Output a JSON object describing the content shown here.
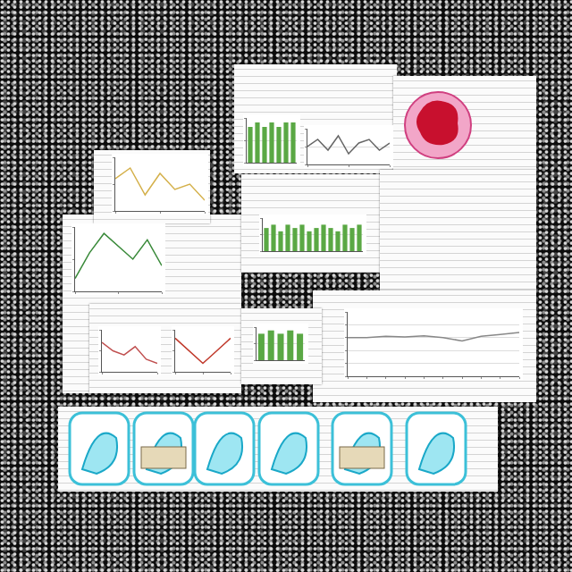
{
  "chart_data": [
    {
      "type": "line",
      "x": [
        0,
        1,
        2,
        3,
        4,
        5,
        6
      ],
      "values": [
        0.6,
        0.8,
        0.3,
        0.7,
        0.4,
        0.5,
        0.2
      ],
      "color": "#d4b04a",
      "xlim": [
        0,
        6
      ],
      "xticks": [
        0,
        3,
        6
      ],
      "ylim": [
        0,
        1
      ],
      "yticks": [
        0,
        0.5,
        1
      ],
      "grid": false,
      "tick_labels": false
    },
    {
      "type": "bar",
      "categories": [
        null,
        null,
        null,
        null,
        null,
        null,
        null
      ],
      "values": [
        8,
        9,
        8,
        9,
        8,
        9,
        9
      ],
      "color": "#5aa844",
      "ylim": [
        0,
        10
      ],
      "yticks": [
        0,
        5,
        10
      ],
      "grid": true,
      "tick_labels": false
    },
    {
      "type": "line",
      "x": [
        0,
        1,
        2,
        3,
        4,
        5,
        6,
        7,
        8
      ],
      "values": [
        5,
        7,
        4,
        8,
        3,
        6,
        7,
        4,
        6
      ],
      "color": "#666666",
      "xlim": [
        0,
        8
      ],
      "xticks": [
        0,
        4,
        8
      ],
      "ylim": [
        0,
        10
      ],
      "yticks": [
        0,
        5,
        10
      ],
      "grid": true,
      "tick_labels": false
    },
    {
      "type": "line",
      "x": [
        0,
        1,
        2,
        3,
        4,
        5,
        6
      ],
      "values": [
        2,
        6,
        9,
        7,
        5,
        8,
        4
      ],
      "color": "#3a8a3a",
      "xlim": [
        0,
        6
      ],
      "xticks": [
        0,
        3,
        6
      ],
      "ylim": [
        0,
        10
      ],
      "yticks": [
        0,
        5,
        10
      ],
      "grid": false,
      "tick_labels": false
    },
    {
      "type": "bar",
      "categories": [
        null,
        null,
        null,
        null,
        null,
        null,
        null,
        null,
        null,
        null,
        null,
        null,
        null,
        null
      ],
      "values": [
        7,
        8,
        6,
        8,
        7,
        8,
        6,
        7,
        8,
        7,
        6,
        8,
        7,
        8
      ],
      "color": "#5aa844",
      "ylim": [
        0,
        10
      ],
      "yticks": [
        0,
        5,
        10
      ],
      "grid": true,
      "tick_labels": false
    },
    {
      "type": "line",
      "x": [
        0,
        1,
        2,
        3,
        4,
        5
      ],
      "values": [
        7,
        5,
        4,
        6,
        3,
        2
      ],
      "color": "#c05050",
      "xlim": [
        0,
        5
      ],
      "xticks": [
        0,
        5
      ],
      "ylim": [
        0,
        10
      ],
      "yticks": [
        0,
        5,
        10
      ],
      "grid": false,
      "tick_labels": false
    },
    {
      "type": "line",
      "x": [
        0,
        1,
        2,
        3,
        4,
        5,
        6
      ],
      "values": [
        8,
        6,
        4,
        2,
        4,
        6,
        8
      ],
      "color": "#c0392b",
      "xlim": [
        0,
        6
      ],
      "xticks": [
        0,
        3,
        6
      ],
      "ylim": [
        0,
        10
      ],
      "yticks": [
        0,
        5,
        10
      ],
      "grid": false,
      "tick_labels": false
    },
    {
      "type": "bar",
      "categories": [
        null,
        null,
        null,
        null,
        null
      ],
      "values": [
        8,
        9,
        8,
        9,
        8
      ],
      "color": "#5aa844",
      "ylim": [
        0,
        10
      ],
      "yticks": [
        0,
        5,
        10
      ],
      "grid": true,
      "tick_labels": false
    },
    {
      "type": "line",
      "x": [
        0,
        1,
        2,
        3,
        4,
        5,
        6,
        7,
        8,
        9
      ],
      "values": [
        6,
        6,
        6.2,
        6.1,
        6.3,
        6,
        5.5,
        6.2,
        6.5,
        6.8
      ],
      "color": "#888888",
      "xlim": [
        0,
        9
      ],
      "xticks": [
        0,
        1,
        2,
        3,
        4,
        5,
        6,
        7,
        8,
        9
      ],
      "ylim": [
        0,
        10
      ],
      "yticks": [
        0,
        2,
        4,
        6,
        8,
        10
      ],
      "grid": true,
      "tick_labels": false
    }
  ]
}
